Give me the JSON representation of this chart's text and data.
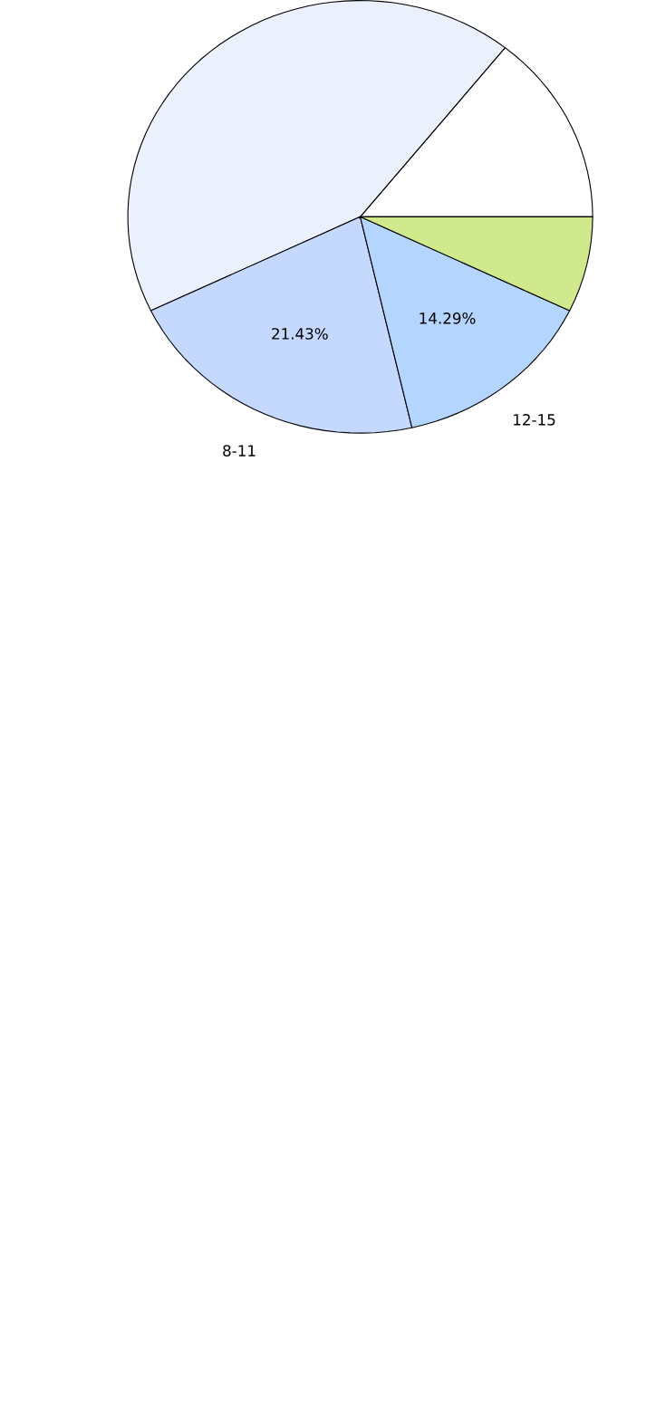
{
  "chart_data": {
    "type": "pie",
    "categories": [
      null,
      null,
      "8-11",
      "12-15",
      null
    ],
    "values": [
      14.29,
      42.86,
      21.43,
      14.29,
      7.14
    ],
    "colors": [
      "#ffffff",
      "#eaf1fd",
      "#c5d8fd",
      "#b4d5fe",
      "#cfe98c"
    ],
    "value_labels": [
      null,
      null,
      "21.43%",
      "14.29%",
      null
    ]
  }
}
